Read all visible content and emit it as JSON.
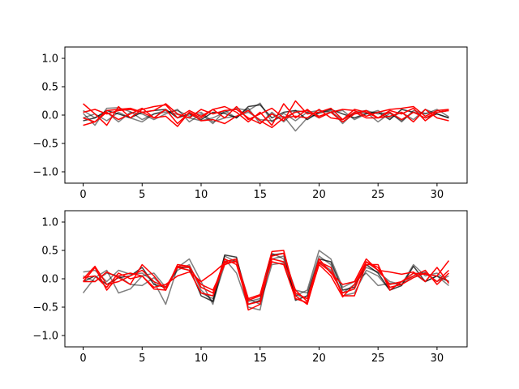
{
  "chart_data": [
    {
      "type": "line",
      "ylim": [
        -1.2,
        1.2
      ],
      "xlim": [
        -1.55,
        32.55
      ],
      "xticks": [
        0,
        5,
        10,
        15,
        20,
        25,
        30
      ],
      "xtick_labels": [
        "0",
        "5",
        "10",
        "15",
        "20",
        "25",
        "30"
      ],
      "yticks": [
        -1.0,
        -0.5,
        0.0,
        0.5,
        1.0
      ],
      "ytick_labels": [
        "−1.0",
        "−0.5",
        "0.0",
        "0.5",
        "1.0"
      ],
      "x": [
        0,
        1,
        2,
        3,
        4,
        5,
        6,
        7,
        8,
        9,
        10,
        11,
        12,
        13,
        14,
        15,
        16,
        17,
        18,
        19,
        20,
        21,
        22,
        23,
        24,
        25,
        26,
        27,
        28,
        29,
        30,
        31
      ],
      "series": [
        {
          "color": "#000000",
          "opacity": 0.5,
          "values": [
            0.03,
            -0.18,
            0.12,
            0.13,
            0.06,
            -0.08,
            0.02,
            0.08,
            0.01,
            -0.05,
            -0.1,
            -0.05,
            0.05,
            0.12,
            0.08,
            0.21,
            -0.12,
            0.03,
            -0.1,
            0.05,
            0.08,
            0.05,
            -0.08,
            0.02,
            0.05,
            -0.12,
            0.03,
            -0.1,
            0.05,
            0.02,
            0.1,
            -0.03
          ]
        },
        {
          "color": "#000000",
          "opacity": 0.5,
          "values": [
            -0.05,
            0.02,
            -0.1,
            0.05,
            -0.05,
            -0.12,
            0.02,
            0.05,
            0.08,
            -0.02,
            0.05,
            -0.12,
            -0.05,
            -0.02,
            0.05,
            -0.08,
            -0.1,
            -0.02,
            -0.28,
            -0.05,
            0.03,
            0.08,
            -0.15,
            0.05,
            0.08,
            0.02,
            0.05,
            -0.12,
            0.08,
            0.03,
            0.05,
            0.08
          ]
        },
        {
          "color": "#000000",
          "opacity": 0.5,
          "values": [
            0.08,
            -0.05,
            0.05,
            -0.12,
            0.05,
            0.02,
            -0.08,
            0.02,
            0.1,
            -0.12,
            0.02,
            -0.15,
            0.08,
            -0.05,
            0.12,
            -0.15,
            0.05,
            -0.12,
            0.08,
            0.05,
            -0.05,
            0.05,
            0.08,
            -0.08,
            0.02,
            0.08,
            -0.05,
            0.05,
            -0.08,
            0.1,
            0.02,
            -0.05
          ]
        },
        {
          "color": "#000000",
          "opacity": 0.75,
          "values": [
            -0.1,
            -0.05,
            0.08,
            0.02,
            -0.05,
            0.05,
            0.08,
            0.1,
            -0.05,
            0.02,
            -0.08,
            0.05,
            0.03,
            -0.05,
            0.15,
            0.18,
            -0.05,
            0.05,
            0.08,
            -0.08,
            0.05,
            0.1,
            0.02,
            -0.05,
            0.03,
            0.05,
            -0.08,
            0.1,
            0.05,
            -0.05,
            0.02,
            -0.05
          ]
        },
        {
          "color": "#ff0000",
          "opacity": 1,
          "values": [
            0.2,
            0.02,
            -0.18,
            0.15,
            -0.05,
            0.1,
            0.15,
            0.18,
            -0.05,
            0.08,
            -0.02,
            0.1,
            0.15,
            0.05,
            -0.12,
            0.05,
            -0.18,
            0.2,
            -0.05,
            0.1,
            -0.05,
            0.05,
            0.1,
            0.08,
            -0.02,
            0.05,
            0.1,
            0.12,
            0.15,
            -0.02,
            0.08,
            0.1
          ]
        },
        {
          "color": "#ff0000",
          "opacity": 1,
          "values": [
            0.05,
            0.1,
            0.02,
            0.08,
            0.1,
            0.05,
            0.08,
            0.2,
            0.02,
            -0.05,
            0.1,
            0.02,
            0.08,
            0.1,
            -0.05,
            -0.15,
            0.02,
            -0.1,
            0.25,
            0.02,
            0.05,
            0.12,
            -0.08,
            0.1,
            0.05,
            -0.05,
            0.08,
            0.02,
            0.12,
            -0.1,
            0.05,
            0.08
          ]
        },
        {
          "color": "#ff0000",
          "opacity": 1,
          "values": [
            -0.05,
            -0.12,
            0.05,
            -0.08,
            0.02,
            0.12,
            -0.05,
            0.1,
            -0.15,
            0.05,
            -0.05,
            0.1,
            -0.05,
            0.15,
            -0.08,
            0.02,
            0.12,
            -0.05,
            0.05,
            0.08,
            -0.02,
            0.05,
            -0.12,
            0.02,
            0.08,
            -0.05,
            -0.02,
            0.05,
            -0.12,
            0.1,
            -0.05,
            -0.1
          ]
        },
        {
          "color": "#ff0000",
          "opacity": 1,
          "values": [
            -0.18,
            -0.12,
            0.08,
            0.1,
            0.12,
            0.05,
            -0.05,
            -0.02,
            -0.2,
            0.05,
            -0.1,
            -0.08,
            -0.15,
            -0.02,
            0.08,
            -0.1,
            -0.22,
            -0.05,
            -0.02,
            -0.05,
            0.1,
            -0.05,
            -0.08,
            0.05,
            -0.05,
            -0.05,
            0.05,
            -0.08,
            0.05,
            -0.05,
            0.05,
            0.08
          ]
        }
      ]
    },
    {
      "type": "line",
      "ylim": [
        -1.2,
        1.2
      ],
      "xlim": [
        -1.55,
        32.55
      ],
      "xticks": [
        0,
        5,
        10,
        15,
        20,
        25,
        30
      ],
      "xtick_labels": [
        "0",
        "5",
        "10",
        "15",
        "20",
        "25",
        "30"
      ],
      "yticks": [
        -1.0,
        -0.5,
        0.0,
        0.5,
        1.0
      ],
      "ytick_labels": [
        "−1.0",
        "−0.5",
        "0.0",
        "0.5",
        "1.0"
      ],
      "x": [
        0,
        1,
        2,
        3,
        4,
        5,
        6,
        7,
        8,
        9,
        10,
        11,
        12,
        13,
        14,
        15,
        16,
        17,
        18,
        19,
        20,
        21,
        22,
        23,
        24,
        25,
        26,
        27,
        28,
        29,
        30,
        31
      ],
      "series": [
        {
          "color": "#000000",
          "opacity": 0.5,
          "values": [
            0.12,
            0.15,
            -0.05,
            0.15,
            0.08,
            0.1,
            -0.05,
            -0.45,
            0.2,
            0.35,
            -0.05,
            -0.45,
            0.35,
            0.1,
            -0.5,
            -0.55,
            0.45,
            0.35,
            -0.3,
            -0.2,
            0.5,
            0.35,
            -0.15,
            -0.05,
            0.1,
            -0.12,
            -0.08,
            -0.1,
            0.25,
            0.05,
            0.1,
            -0.05
          ]
        },
        {
          "color": "#000000",
          "opacity": 0.5,
          "values": [
            -0.25,
            0.02,
            0.15,
            -0.25,
            -0.18,
            0.05,
            0.1,
            -0.15,
            0.15,
            0.25,
            -0.2,
            -0.4,
            0.25,
            0.35,
            -0.35,
            -0.45,
            0.25,
            0.28,
            -0.28,
            -0.35,
            0.3,
            0.15,
            -0.25,
            -0.1,
            0.2,
            0.12,
            -0.05,
            -0.1,
            0.05,
            0.12,
            -0.05,
            0.05
          ]
        },
        {
          "color": "#000000",
          "opacity": 0.5,
          "values": [
            0.05,
            -0.05,
            0.1,
            0.05,
            -0.1,
            -0.12,
            0.02,
            -0.2,
            0.2,
            0.15,
            -0.25,
            -0.35,
            0.4,
            0.3,
            -0.4,
            -0.35,
            0.35,
            0.4,
            -0.2,
            -0.25,
            0.4,
            0.25,
            -0.3,
            -0.25,
            0.15,
            0.05,
            -0.2,
            -0.05,
            0.1,
            -0.05,
            0.05,
            -0.12
          ]
        },
        {
          "color": "#000000",
          "opacity": 0.75,
          "values": [
            -0.05,
            0.05,
            -0.1,
            0.02,
            0.05,
            0.2,
            -0.1,
            -0.15,
            0.2,
            0.2,
            -0.3,
            -0.4,
            0.42,
            0.38,
            -0.45,
            -0.38,
            0.42,
            0.45,
            -0.38,
            -0.3,
            0.35,
            0.3,
            -0.2,
            -0.15,
            0.25,
            0.1,
            -0.2,
            -0.12,
            0.22,
            -0.05,
            0.05,
            -0.05
          ]
        },
        {
          "color": "#ff0000",
          "opacity": 1,
          "values": [
            0.0,
            0.22,
            -0.1,
            -0.05,
            0.05,
            0.15,
            -0.05,
            -0.15,
            0.2,
            0.15,
            -0.25,
            -0.3,
            0.3,
            0.35,
            -0.55,
            -0.45,
            0.4,
            0.45,
            -0.25,
            -0.35,
            0.35,
            0.1,
            -0.1,
            -0.05,
            0.35,
            0.15,
            -0.1,
            -0.05,
            0.1,
            0.08,
            0.05,
            0.32
          ]
        },
        {
          "color": "#ff0000",
          "opacity": 1,
          "values": [
            -0.05,
            -0.05,
            0.12,
            0.02,
            -0.1,
            0.25,
            0.05,
            -0.2,
            0.25,
            0.22,
            -0.15,
            -0.25,
            0.35,
            0.25,
            -0.45,
            -0.4,
            0.35,
            0.3,
            -0.2,
            -0.4,
            0.3,
            0.2,
            -0.3,
            -0.3,
            0.25,
            0.25,
            -0.2,
            -0.05,
            0.05,
            0.15,
            -0.1,
            0.1
          ]
        },
        {
          "color": "#ff0000",
          "opacity": 1,
          "values": [
            0.02,
            0.05,
            -0.15,
            0.1,
            0.0,
            0.05,
            -0.15,
            -0.1,
            0.05,
            0.12,
            -0.05,
            0.1,
            0.28,
            0.3,
            -0.35,
            -0.28,
            0.48,
            0.5,
            -0.3,
            -0.45,
            0.28,
            0.12,
            -0.25,
            -0.18,
            0.3,
            0.15,
            0.12,
            0.08,
            0.12,
            -0.05,
            0.2,
            -0.08
          ]
        },
        {
          "color": "#ff0000",
          "opacity": 1,
          "values": [
            -0.05,
            0.2,
            -0.2,
            0.05,
            0.1,
            0.05,
            -0.18,
            -0.2,
            0.22,
            0.2,
            -0.1,
            -0.2,
            0.25,
            0.32,
            -0.38,
            -0.3,
            0.3,
            0.25,
            -0.35,
            -0.42,
            0.25,
            0.05,
            -0.32,
            -0.1,
            0.3,
            0.2,
            -0.15,
            -0.1,
            0.02,
            0.1,
            -0.05,
            0.15
          ]
        }
      ]
    }
  ]
}
